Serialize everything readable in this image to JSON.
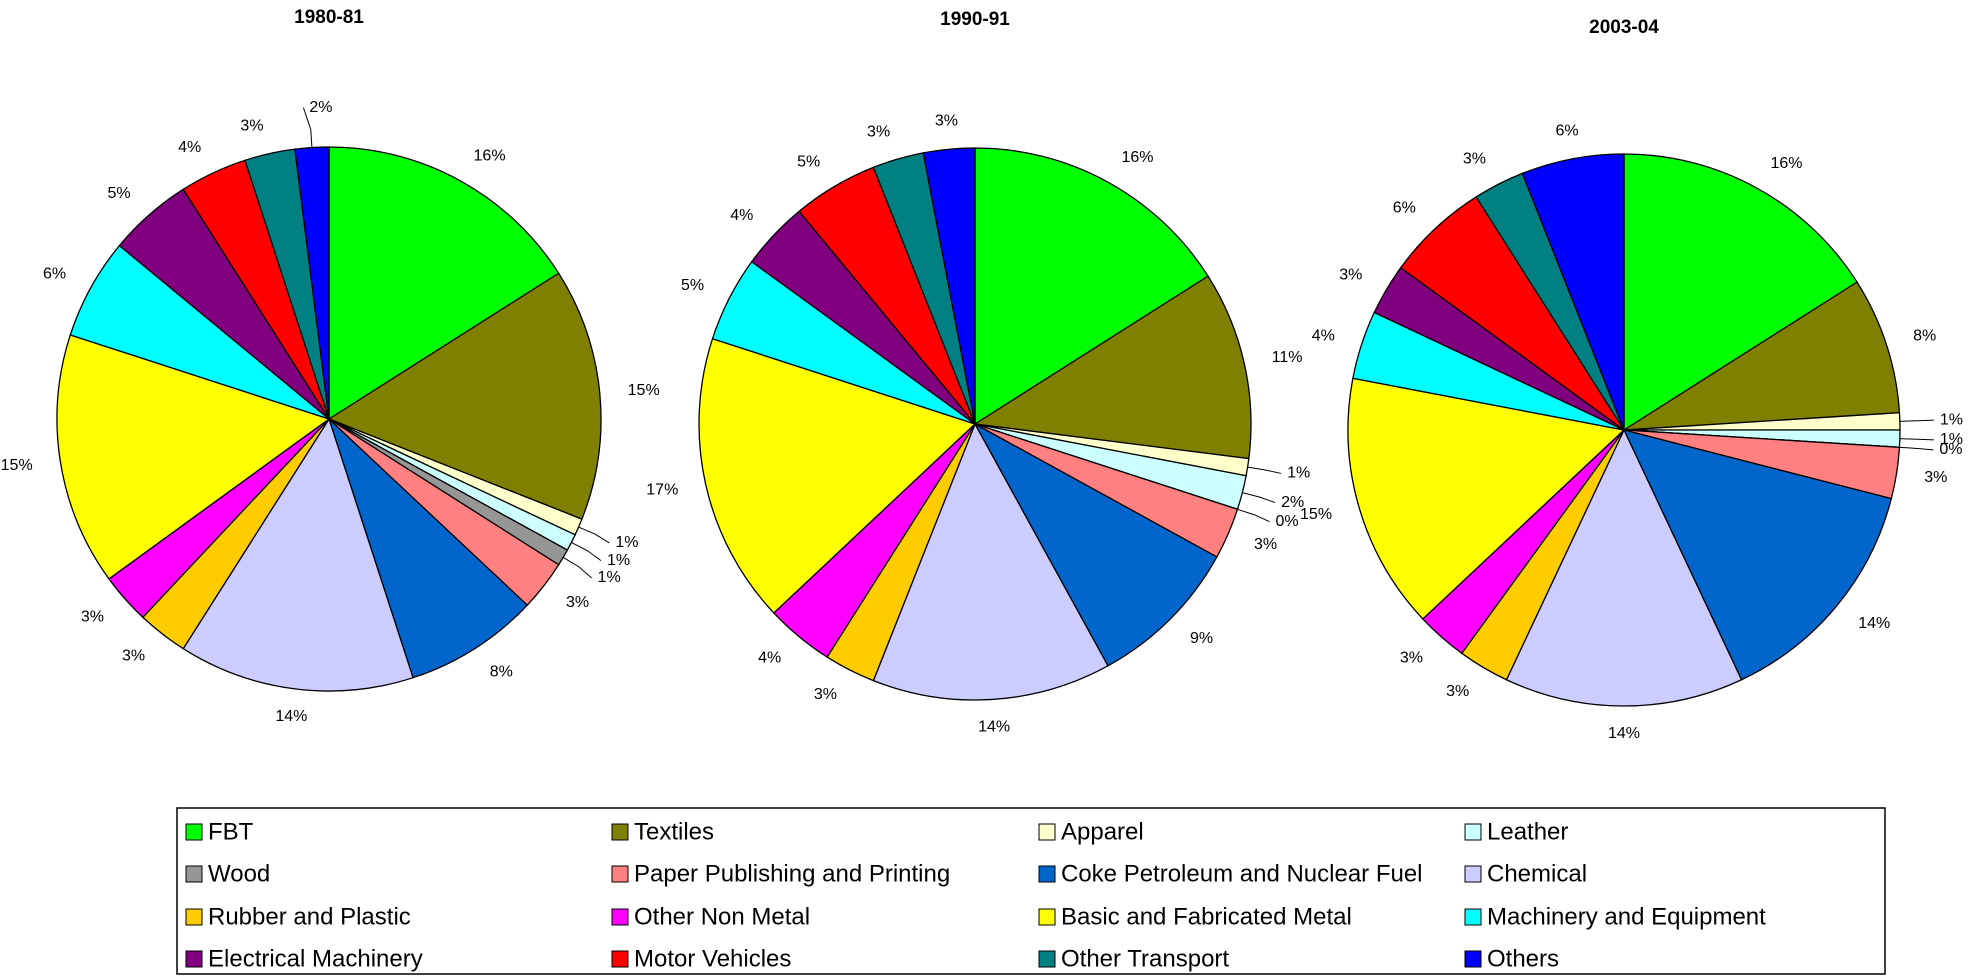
{
  "chart_data": [
    {
      "type": "pie",
      "title": "1980-81",
      "categories": [
        "FBT",
        "Textiles",
        "Apparel",
        "Leather",
        "Wood",
        "Paper Publishing and Printing",
        "Coke Petroleum and Nuclear Fuel",
        "Chemical",
        "Rubber and Plastic",
        "Other Non Metal",
        "Basic and Fabricated Metal",
        "Machinery and Equipment",
        "Electrical Machinery",
        "Motor Vehicles",
        "Other Transport",
        "Others"
      ],
      "colors": [
        "#00ff00",
        "#808000",
        "#ffffcc",
        "#ccffff",
        "#969696",
        "#ff8080",
        "#0066cc",
        "#ccccff",
        "#ffcc00",
        "#ff00ff",
        "#ffff00",
        "#00ffff",
        "#800080",
        "#ff0000",
        "#008080",
        "#0000ff"
      ],
      "values": [
        16,
        15,
        1,
        1,
        1,
        3,
        8,
        14,
        3,
        3,
        15,
        6,
        5,
        4,
        3,
        2
      ],
      "value_labels": [
        "16%",
        "15%",
        "1%",
        "1%",
        "1%",
        "3%",
        "8%",
        "14%",
        "3%",
        "3%",
        "15%",
        "6%",
        "5%",
        "4%",
        "3%",
        "2%"
      ]
    },
    {
      "type": "pie",
      "title": "1990-91",
      "categories": [
        "FBT",
        "Textiles",
        "Apparel",
        "Leather",
        "Wood",
        "Paper Publishing and Printing",
        "Coke Petroleum and Nuclear Fuel",
        "Chemical",
        "Rubber and Plastic",
        "Other Non Metal",
        "Basic and Fabricated Metal",
        "Machinery and Equipment",
        "Electrical Machinery",
        "Motor Vehicles",
        "Other Transport",
        "Others"
      ],
      "colors": [
        "#00ff00",
        "#808000",
        "#ffffcc",
        "#ccffff",
        "#969696",
        "#ff8080",
        "#0066cc",
        "#ccccff",
        "#ffcc00",
        "#ff00ff",
        "#ffff00",
        "#00ffff",
        "#800080",
        "#ff0000",
        "#008080",
        "#0000ff"
      ],
      "values": [
        16,
        11,
        1,
        2,
        0,
        3,
        9,
        14,
        3,
        4,
        17,
        5,
        4,
        5,
        3,
        3
      ],
      "value_labels": [
        "16%",
        "11%",
        "1%",
        "2%",
        "0%",
        "3%",
        "9%",
        "14%",
        "3%",
        "4%",
        "17%",
        "5%",
        "4%",
        "5%",
        "3%",
        "3%"
      ]
    },
    {
      "type": "pie",
      "title": "2003-04",
      "categories": [
        "FBT",
        "Textiles",
        "Apparel",
        "Leather",
        "Wood",
        "Paper Publishing and Printing",
        "Coke Petroleum and Nuclear Fuel",
        "Chemical",
        "Rubber and Plastic",
        "Other Non Metal",
        "Basic and Fabricated Metal",
        "Machinery and Equipment",
        "Electrical Machinery",
        "Motor Vehicles",
        "Other Transport",
        "Others"
      ],
      "colors": [
        "#00ff00",
        "#808000",
        "#ffffcc",
        "#ccffff",
        "#969696",
        "#ff8080",
        "#0066cc",
        "#ccccff",
        "#ffcc00",
        "#ff00ff",
        "#ffff00",
        "#00ffff",
        "#800080",
        "#ff0000",
        "#008080",
        "#0000ff"
      ],
      "values": [
        16,
        8,
        1,
        1,
        0,
        3,
        14,
        14,
        3,
        3,
        15,
        4,
        3,
        6,
        3,
        6
      ],
      "value_labels": [
        "16%",
        "8%",
        "1%",
        "1%",
        "0%",
        "3%",
        "14%",
        "14%",
        "3%",
        "3%",
        "15%",
        "4%",
        "3%",
        "6%",
        "3%",
        "6%"
      ]
    }
  ]
}
